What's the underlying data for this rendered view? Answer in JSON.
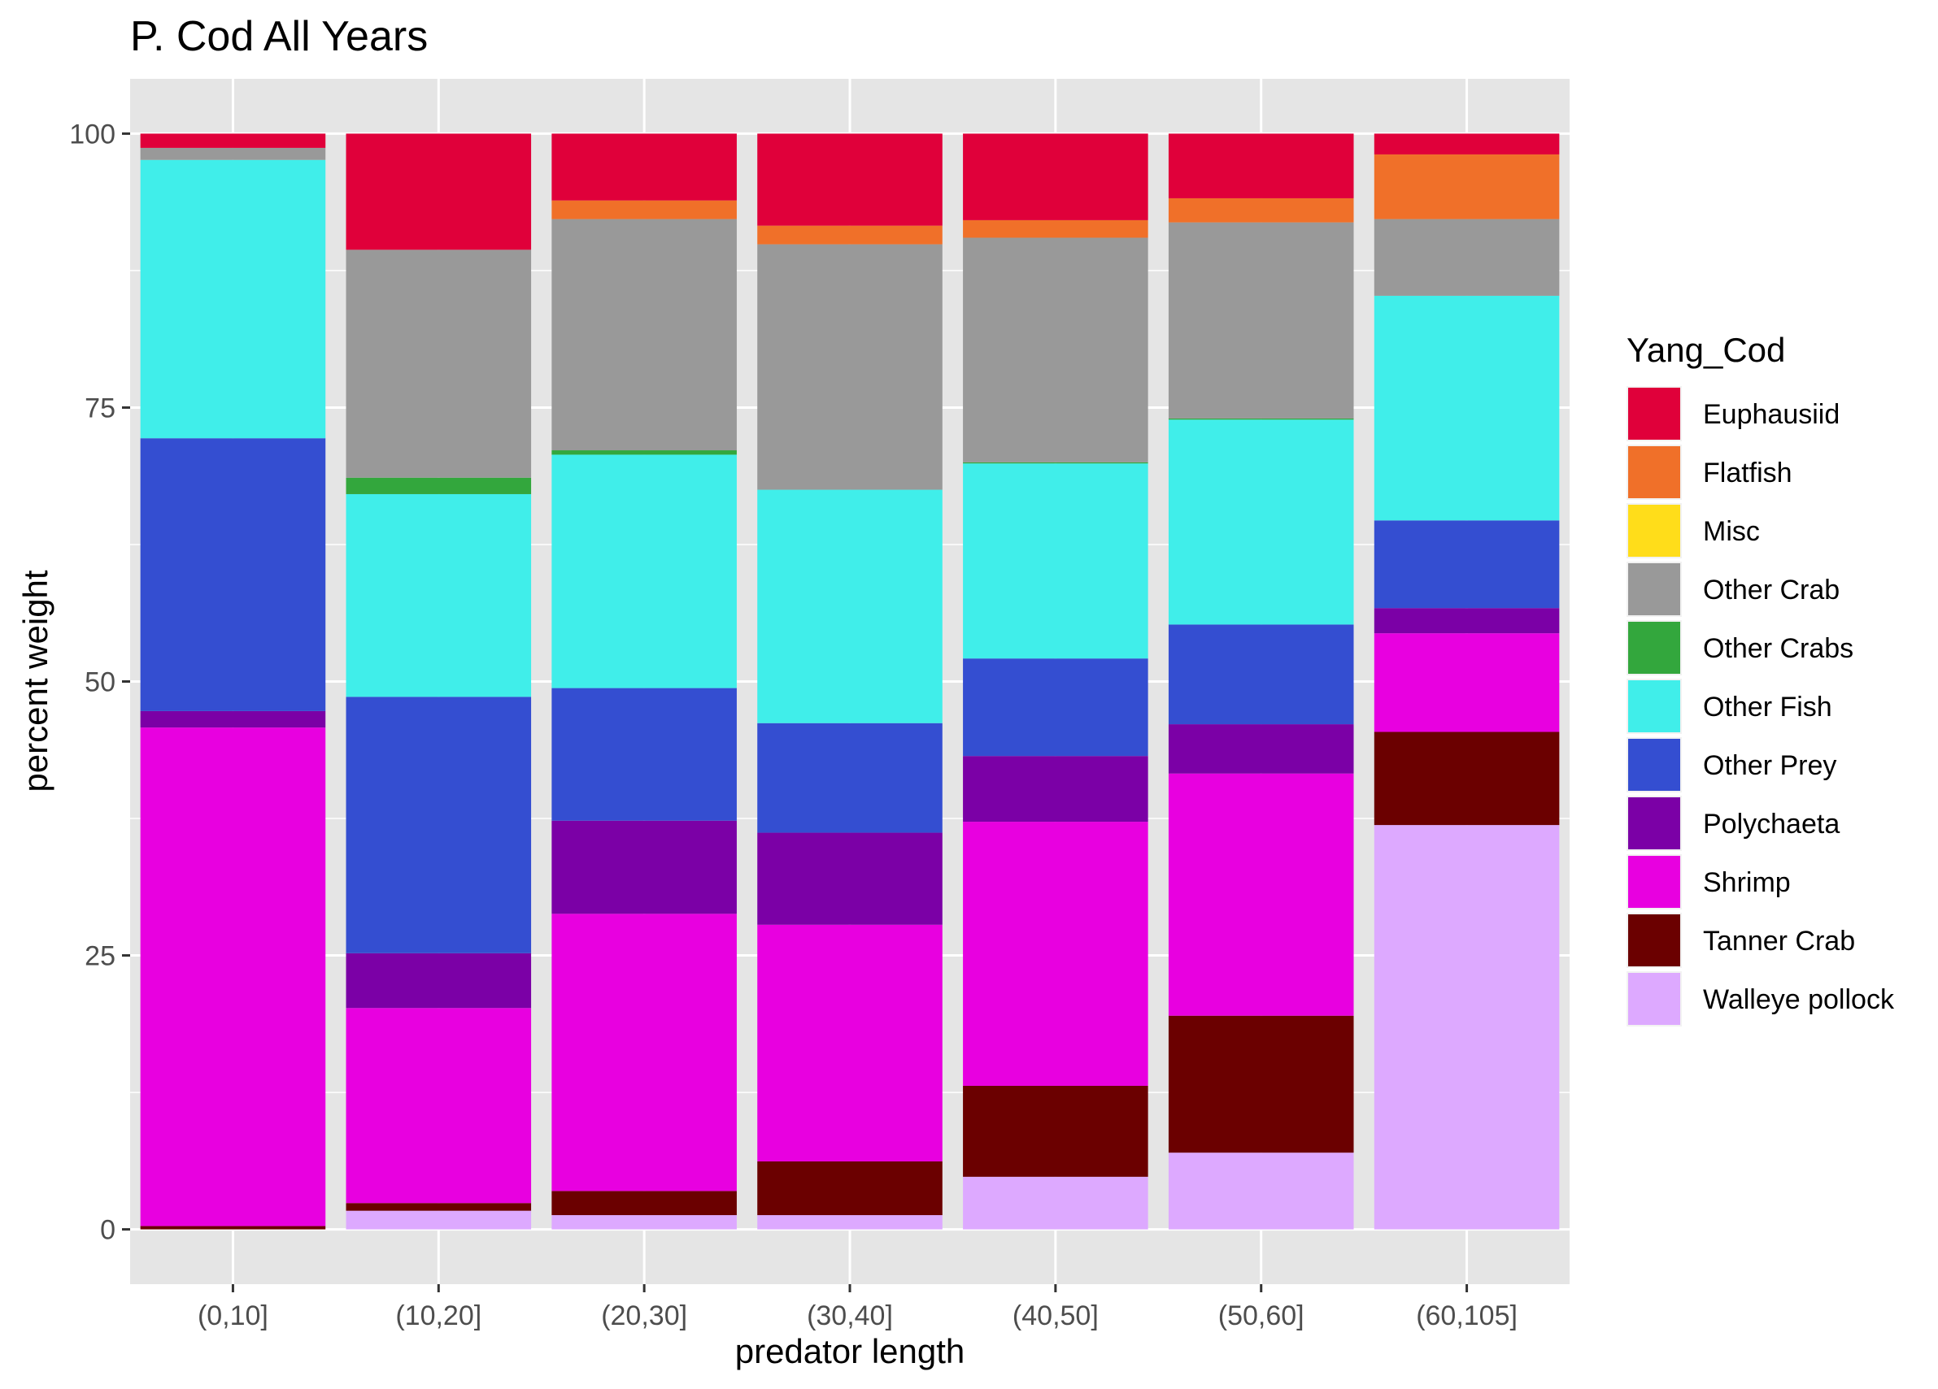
{
  "chart_data": {
    "type": "bar",
    "stacked": true,
    "title": "P. Cod All Years",
    "xlabel": "predator length",
    "ylabel": "percent weight",
    "ylim": [
      -5,
      105
    ],
    "yticks": [
      0,
      25,
      50,
      75,
      100
    ],
    "grid": true,
    "legend_title": "Yang_Cod",
    "legend_position": "right",
    "categories": [
      "(0,10]",
      "(10,20]",
      "(20,30]",
      "(30,40]",
      "(40,50]",
      "(50,60]",
      "(60,105]"
    ],
    "series": [
      {
        "name": "Walleye pollock",
        "color": "#DDA9FF",
        "values": [
          0.0,
          1.7,
          1.3,
          1.3,
          4.8,
          7.0,
          36.9
        ]
      },
      {
        "name": "Tanner Crab",
        "color": "#6B0000",
        "values": [
          0.3,
          0.7,
          2.2,
          4.9,
          8.3,
          12.5,
          8.5
        ]
      },
      {
        "name": "Shrimp",
        "color": "#E800E0",
        "values": [
          45.5,
          17.8,
          25.3,
          21.6,
          24.1,
          22.1,
          9.0
        ]
      },
      {
        "name": "Polychaeta",
        "color": "#7B00A6",
        "values": [
          1.5,
          5.0,
          8.5,
          8.4,
          6.0,
          4.5,
          2.3
        ]
      },
      {
        "name": "Other Prey",
        "color": "#344ED1",
        "values": [
          24.9,
          23.4,
          12.1,
          10.0,
          8.9,
          9.1,
          8.0
        ]
      },
      {
        "name": "Other Fish",
        "color": "#40EEEA",
        "values": [
          25.4,
          18.5,
          21.3,
          21.3,
          17.8,
          18.7,
          20.5
        ]
      },
      {
        "name": "Other Crabs",
        "color": "#33A73D",
        "values": [
          0.0,
          1.5,
          0.4,
          0.0,
          0.1,
          0.1,
          0.0
        ]
      },
      {
        "name": "Other Crab",
        "color": "#999999",
        "values": [
          1.1,
          20.8,
          21.1,
          22.4,
          20.5,
          17.9,
          7.0
        ]
      },
      {
        "name": "Misc",
        "color": "#FFDD1A",
        "values": [
          0.0,
          0.0,
          0.0,
          0.0,
          0.0,
          0.0,
          0.0
        ]
      },
      {
        "name": "Flatfish",
        "color": "#F07029",
        "values": [
          0.0,
          0.0,
          1.7,
          1.7,
          1.6,
          2.2,
          5.9
        ]
      },
      {
        "name": "Euphausiid",
        "color": "#E0003A",
        "values": [
          1.3,
          10.6,
          6.1,
          8.4,
          7.9,
          5.9,
          1.9
        ]
      }
    ],
    "legend_order": [
      "Euphausiid",
      "Flatfish",
      "Misc",
      "Other Crab",
      "Other Crabs",
      "Other Fish",
      "Other Prey",
      "Polychaeta",
      "Shrimp",
      "Tanner Crab",
      "Walleye pollock"
    ]
  },
  "colors": {
    "panel_background": "#E5E5E5",
    "grid_line": "#FFFFFF",
    "tick_text": "#4D4D4D"
  }
}
